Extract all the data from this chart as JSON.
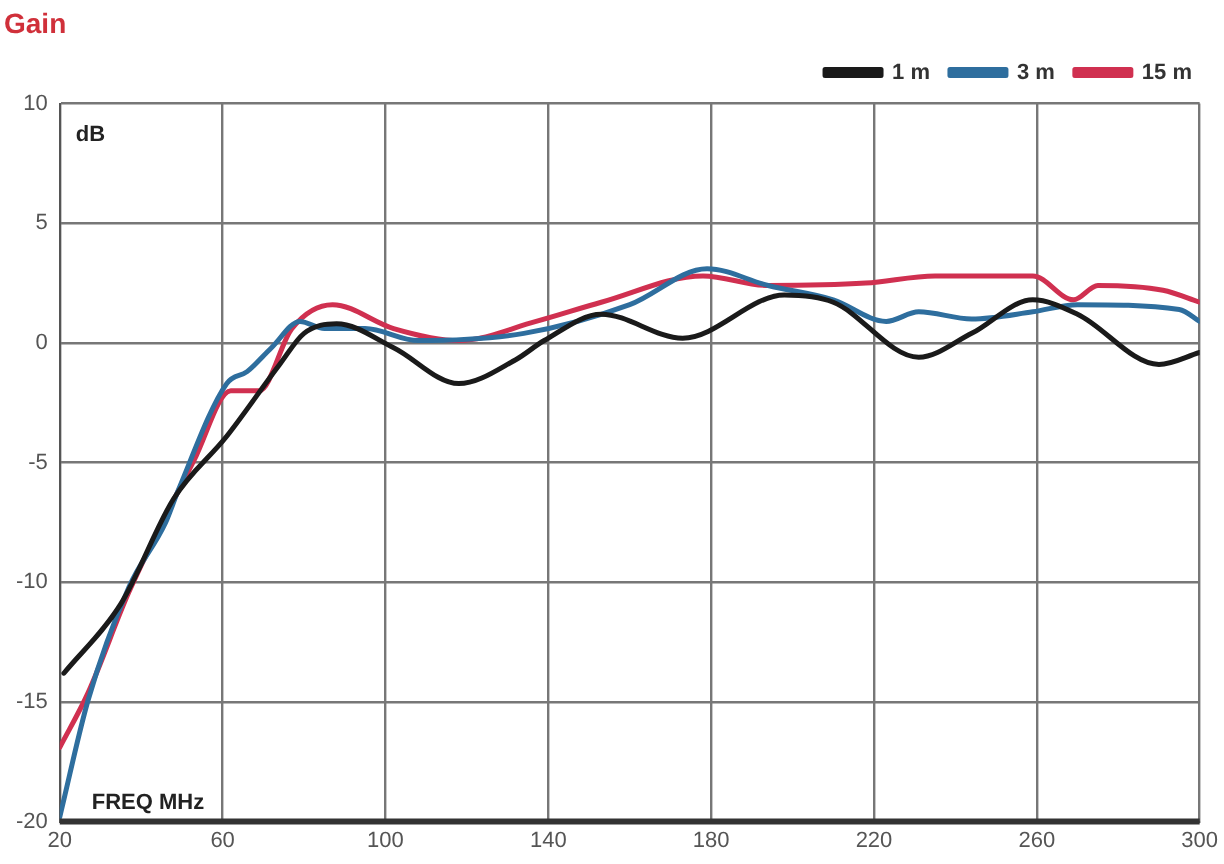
{
  "chart_data": {
    "type": "line",
    "title": "Gain",
    "xlabel": "FREQ MHz",
    "ylabel": "dB",
    "xlim": [
      20,
      300
    ],
    "xticks": [
      20,
      60,
      100,
      140,
      180,
      220,
      260,
      300
    ],
    "ylim": [
      -20,
      10
    ],
    "yticks": [
      -20,
      -15,
      -10,
      -5,
      0,
      5,
      10
    ],
    "grid": true,
    "legend": "top right",
    "marker": "none",
    "line_style": "solid",
    "series": [
      {
        "name": "1 m",
        "color": "#1a1a1a",
        "x": [
          21,
          35,
          48,
          61,
          74,
          80,
          88,
          102,
          118,
          132,
          139,
          153,
          173,
          198,
          210,
          231,
          244,
          259,
          270,
          290,
          300
        ],
        "values": [
          -13.8,
          -10.9,
          -6.5,
          -3.9,
          -0.9,
          0.4,
          0.8,
          -0.2,
          -1.7,
          -0.7,
          0.1,
          1.2,
          0.2,
          2.0,
          1.7,
          -0.6,
          0.4,
          1.8,
          1.2,
          -0.9,
          -0.4
        ]
      },
      {
        "name": "3 m",
        "color": "#2e6e9e",
        "x": [
          20,
          27,
          37,
          46,
          49,
          61,
          66,
          72,
          79,
          85,
          95,
          108,
          134,
          160,
          179,
          194,
          210,
          223,
          231,
          244,
          259,
          270,
          295,
          300
        ],
        "values": [
          -19.8,
          -14.9,
          -10.2,
          -7.5,
          -6.2,
          -1.7,
          -1.2,
          -0.2,
          0.9,
          0.6,
          0.6,
          0.1,
          0.4,
          1.6,
          3.1,
          2.4,
          1.8,
          0.9,
          1.3,
          1.0,
          1.3,
          1.6,
          1.4,
          0.9
        ]
      },
      {
        "name": "15 m",
        "color": "#d03050",
        "x": [
          20,
          27,
          37,
          53,
          62,
          69,
          77,
          87,
          102,
          118,
          137,
          153,
          178,
          194,
          218,
          235,
          259,
          269,
          275,
          291,
          300
        ],
        "values": [
          -16.9,
          -14.6,
          -10.4,
          -4.9,
          -2.0,
          -2.0,
          0.6,
          1.6,
          0.6,
          0.1,
          0.9,
          1.7,
          2.8,
          2.4,
          2.5,
          2.8,
          2.8,
          1.8,
          2.4,
          2.2,
          1.7
        ]
      }
    ]
  }
}
